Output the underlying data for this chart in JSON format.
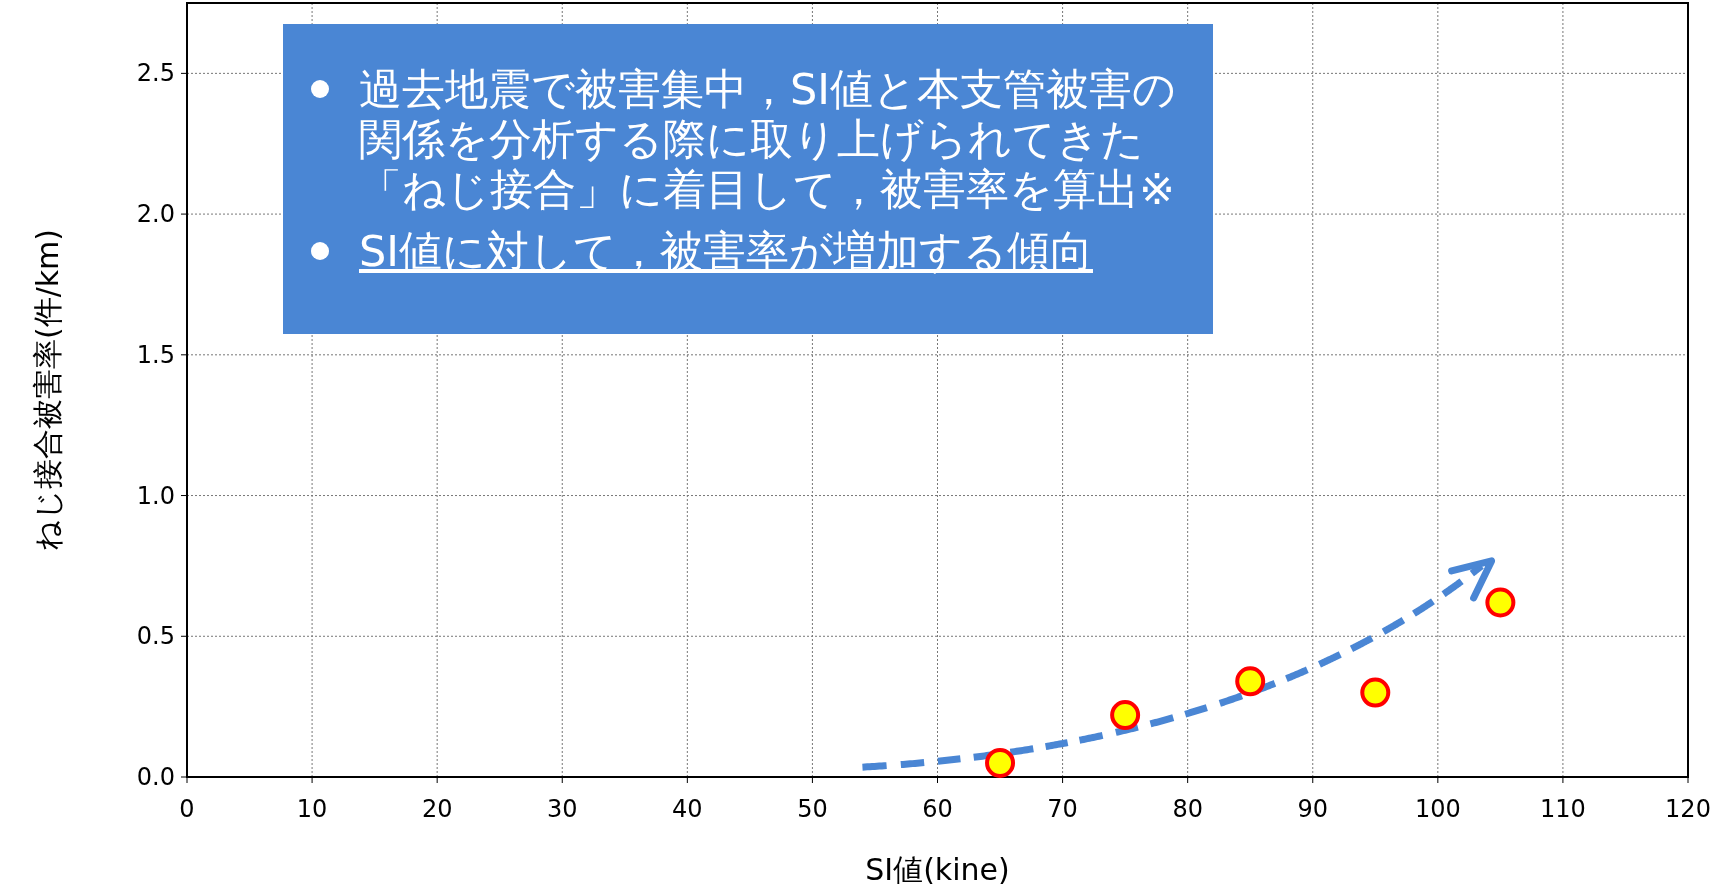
{
  "chart_data": {
    "type": "scatter",
    "xlabel": "SI値(kine)",
    "ylabel": "ねじ接合被害率(件/km)",
    "x": [
      65,
      75,
      85,
      95,
      105
    ],
    "series": [
      {
        "color": "#ffff00",
        "values": [
          0.05,
          0.22,
          0.34,
          0.3,
          0.62
        ]
      }
    ],
    "xlim": [
      0,
      120
    ],
    "xticks": [
      0,
      10,
      20,
      30,
      40,
      50,
      60,
      70,
      80,
      90,
      100,
      110,
      120
    ],
    "ylim": [
      0,
      2.75
    ],
    "yticks": [
      {
        "value": 0,
        "label": "0.0"
      },
      {
        "value": 0.5,
        "label": "0.5"
      },
      {
        "value": 1,
        "label": "1.0"
      },
      {
        "value": 1.5,
        "label": "1.5"
      },
      {
        "value": 2,
        "label": "2.0"
      },
      {
        "value": 2.5,
        "label": "2.5"
      }
    ],
    "grid": true,
    "marker": "circle",
    "annotations": [
      "過去地震で被害集中，SI値と本支管被害の関係を分析する際に取り上げられてきた「ねじ接合」に着目して，被害率を算出※",
      "SI値に対して，被害率が増加する傾向"
    ]
  }
}
